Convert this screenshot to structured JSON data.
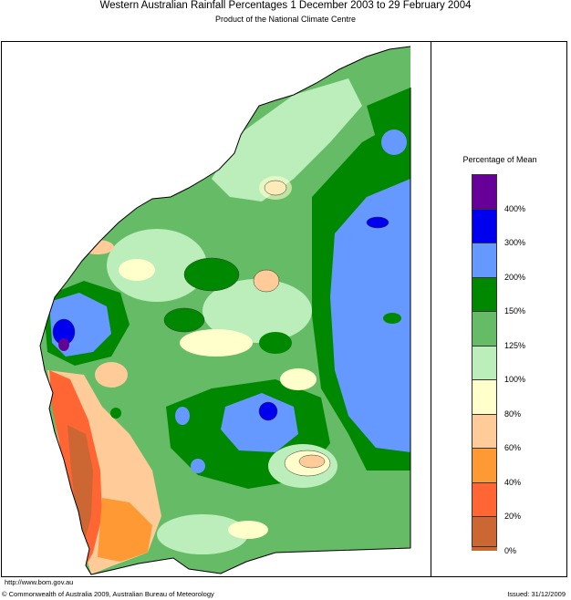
{
  "header": {
    "title": "Western Australian Rainfall Percentages 1 December 2003 to 29 February 2004",
    "subtitle": "Product of the National Climate Centre"
  },
  "legend": {
    "title": "Percentage of Mean",
    "bins": [
      {
        "color": "#660099"
      },
      {
        "color": "#0000ee"
      },
      {
        "color": "#6699ff"
      },
      {
        "color": "#008800"
      },
      {
        "color": "#66bb66"
      },
      {
        "color": "#bbeebb"
      },
      {
        "color": "#ffffcc"
      },
      {
        "color": "#ffcc99"
      },
      {
        "color": "#ff9933"
      },
      {
        "color": "#ff6633"
      },
      {
        "color": "#cc6633"
      }
    ],
    "ticks": [
      "400%",
      "300%",
      "200%",
      "150%",
      "125%",
      "100%",
      "80%",
      "60%",
      "40%",
      "20%",
      "0%"
    ]
  },
  "footer": {
    "url": "http://www.bom.gov.au",
    "copyright": "© Commonwealth of Australia 2009, Australian Bureau of Meteorology",
    "issued": "Issued: 31/12/2009"
  }
}
